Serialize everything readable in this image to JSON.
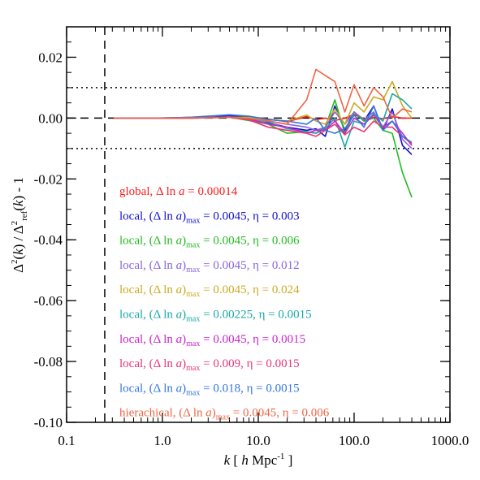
{
  "chart_data": {
    "type": "line",
    "xlog": true,
    "xlim": [
      0.1,
      1000
    ],
    "ylim": [
      -0.1,
      0.03
    ],
    "xticks": [
      {
        "value": 0.1,
        "label": "0.1"
      },
      {
        "value": 1,
        "label": "1.0"
      },
      {
        "value": 10,
        "label": "10.0"
      },
      {
        "value": 100,
        "label": "100.0"
      },
      {
        "value": 1000,
        "label": "1000.0"
      }
    ],
    "yticks": [
      {
        "value": 0.02,
        "label": "0.02"
      },
      {
        "value": 0.0,
        "label": "0.00"
      },
      {
        "value": -0.02,
        "label": "-0.02"
      },
      {
        "value": -0.04,
        "label": "-0.04"
      },
      {
        "value": -0.06,
        "label": "-0.06"
      },
      {
        "value": -0.08,
        "label": "-0.08"
      },
      {
        "value": -0.1,
        "label": "-0.10"
      }
    ],
    "xlabel": "k [ h Mpc⁻¹ ]",
    "ylabel": "Δ²(k) / Δ²ref(k) - 1",
    "reference_lines": [
      {
        "axis": "y",
        "value": 0.01,
        "style": "dotted"
      },
      {
        "axis": "y",
        "value": -0.01,
        "style": "dotted"
      },
      {
        "axis": "y",
        "value": 0.0,
        "style": "dashed"
      },
      {
        "axis": "x",
        "value": 0.25,
        "style": "dashed"
      }
    ],
    "x": [
      0.31,
      0.5,
      0.8,
      1.27,
      2.0,
      3.2,
      5.0,
      8.0,
      12.7,
      20,
      32,
      40,
      50,
      63,
      80,
      100,
      127,
      160,
      200,
      250,
      320,
      400
    ],
    "series": [
      {
        "name": "global, Δ ln a = 0.00014",
        "color": "#ff1a1a",
        "values": [
          0,
          0,
          0,
          0,
          0,
          0.0003,
          0.0002,
          0.0005,
          -0.0003,
          -0.0012,
          0.0005,
          -0.0005,
          0,
          -0.0008,
          0,
          0.0012,
          -0.0003,
          0.0002,
          -0.0002,
          0.0005,
          0,
          0
        ]
      },
      {
        "name": "local, (Δ ln a)max = 0.0045, η = 0.003",
        "color": "#1111cc",
        "values": [
          0,
          0,
          0,
          0.0001,
          0.0002,
          0.0005,
          0.0008,
          0.0002,
          -0.0015,
          -0.003,
          -0.004,
          -0.0035,
          -0.006,
          0.004,
          -0.004,
          0.002,
          -0.001,
          0.004,
          -0.004,
          0.003,
          -0.009,
          -0.012
        ]
      },
      {
        "name": "local, (Δ ln a)max = 0.0045, η = 0.006",
        "color": "#22bb22",
        "values": [
          0,
          0,
          0,
          0,
          0.0001,
          0.0002,
          0.0003,
          -0.0008,
          -0.002,
          -0.005,
          -0.0045,
          -0.005,
          -0.003,
          0.006,
          -0.005,
          0.002,
          -0.001,
          0.0,
          -0.004,
          -0.005,
          -0.018,
          -0.026
        ]
      },
      {
        "name": "local, (Δ ln a)max = 0.0045, η = 0.012",
        "color": "#8866dd",
        "values": [
          0,
          0,
          0,
          0,
          0.0001,
          0.0002,
          0.0004,
          -0.0005,
          -0.001,
          -0.002,
          -0.003,
          -0.004,
          -0.003,
          0.002,
          -0.002,
          0.002,
          -0.0005,
          0.002,
          -0.003,
          0.002,
          -0.007,
          -0.01
        ]
      },
      {
        "name": "local, (Δ ln a)max = 0.0045, η = 0.024",
        "color": "#ccaa22",
        "values": [
          0,
          0,
          0,
          0,
          0.0001,
          0.0002,
          0.0003,
          0.0002,
          -0.0005,
          -0.001,
          0.001,
          -0.001,
          -0.002,
          0.003,
          -0.002,
          0.005,
          0.002,
          0.007,
          0.006,
          0.012,
          0.004,
          0.0
        ]
      },
      {
        "name": "local, (Δ ln a)max = 0.00225, η = 0.0015",
        "color": "#1aa8a8",
        "values": [
          0,
          0,
          0,
          0,
          0.0001,
          0.0002,
          0.0003,
          -0.0004,
          -0.0012,
          -0.0035,
          -0.0045,
          -0.005,
          -0.0035,
          0.0,
          -0.0095,
          -0.001,
          -0.002,
          0.0015,
          -0.001,
          0.008,
          0.006,
          0.003
        ]
      },
      {
        "name": "local, (Δ ln a)max = 0.0045, η = 0.0015",
        "color": "#cc22cc",
        "values": [
          0,
          0,
          0,
          0,
          0.0001,
          0.0002,
          0.0002,
          -0.0003,
          -0.002,
          -0.003,
          -0.005,
          -0.004,
          -0.004,
          -0.001,
          -0.005,
          0.0,
          -0.002,
          0.001,
          -0.003,
          -0.001,
          -0.005,
          -0.009
        ]
      },
      {
        "name": "local, (Δ ln a)max = 0.009, η = 0.0015",
        "color": "#ee3377",
        "values": [
          0,
          0,
          0,
          0,
          0,
          0.0001,
          0.0002,
          -0.0006,
          -0.003,
          -0.004,
          -0.005,
          -0.006,
          -0.004,
          -0.002,
          -0.0055,
          -0.003,
          -0.0045,
          -0.001,
          -0.003,
          -0.003,
          -0.006,
          -0.0085
        ]
      },
      {
        "name": "local, (Δ ln a)max = 0.018, η = 0.0015",
        "color": "#3377dd",
        "values": [
          0,
          0,
          0,
          0.0001,
          0.0003,
          0.0007,
          0.0011,
          0.0006,
          -0.0005,
          -0.001,
          -0.002,
          0.0,
          -0.004,
          -0.005,
          -0.0035,
          0.001,
          -0.003,
          0.004,
          -0.004,
          -0.001,
          -0.006,
          -0.008
        ]
      },
      {
        "name": "hierachical, (Δ ln a)max = 0.0045, η = 0.006",
        "color": "#ee6644",
        "values": [
          0,
          0,
          0,
          0,
          0.0001,
          0.0001,
          0.0002,
          -0.0002,
          -0.001,
          -0.002,
          0.006,
          0.016,
          0.014,
          0.012,
          0.002,
          0.011,
          0.004,
          0.01,
          0.007,
          0.0,
          0.003,
          0.002
        ]
      }
    ],
    "legend_placement": "inside lower-left",
    "legend_labels": [
      "global, Δ ln a = 0.00014",
      "local, (Δ ln a)max = 0.0045, η = 0.003",
      "local, (Δ ln a)max = 0.0045, η = 0.006",
      "local, (Δ ln a)max = 0.0045, η = 0.012",
      "local, (Δ ln a)max = 0.0045, η = 0.024",
      "local, (Δ ln a)max = 0.00225, η = 0.0015",
      "local, (Δ ln a)max = 0.0045, η = 0.0015",
      "local, (Δ ln a)max = 0.009, η = 0.0015",
      "local, (Δ ln a)max = 0.018, η = 0.0015",
      "hierachical, (Δ ln a)max = 0.0045, η = 0.006"
    ],
    "grid": false
  }
}
